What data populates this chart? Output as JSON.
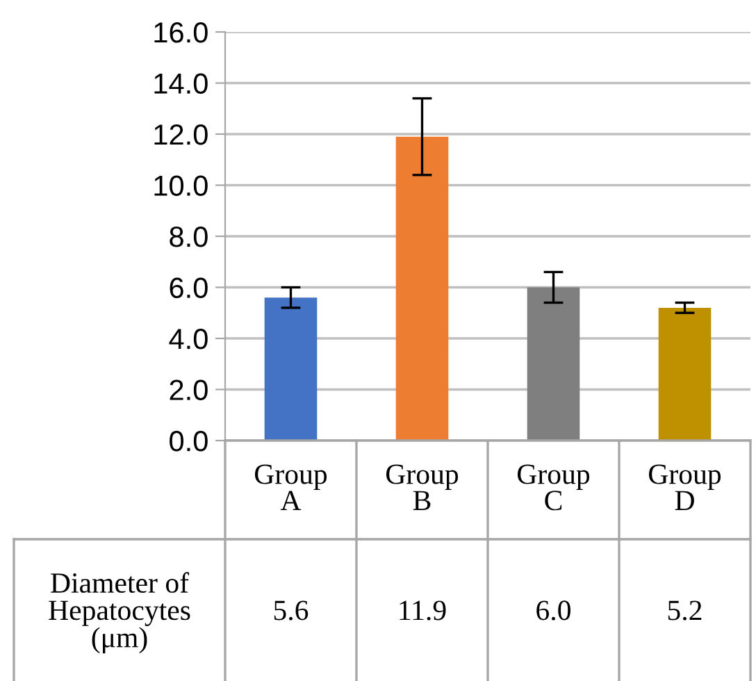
{
  "chart_data": {
    "type": "bar",
    "categories": [
      "Group\nA",
      "Group\nB",
      "Group\nC",
      "Group\nD"
    ],
    "series": [
      {
        "name": "Diameter of\nHepatocytes\n(μm)",
        "values": [
          5.6,
          11.9,
          6.0,
          5.2
        ],
        "colors": [
          "#4472c4",
          "#ed7d31",
          "#7f7f7f",
          "#bf9000"
        ],
        "errors": [
          0.4,
          1.5,
          0.6,
          0.2
        ],
        "value_labels": [
          "5.6",
          "11.9",
          "6.0",
          "5.2"
        ]
      }
    ],
    "ylim": [
      0,
      16
    ],
    "yticks": [
      {
        "value": 0,
        "label": "0.0"
      },
      {
        "value": 2,
        "label": "2.0"
      },
      {
        "value": 4,
        "label": "4.0"
      },
      {
        "value": 6,
        "label": "6.0"
      },
      {
        "value": 8,
        "label": "8.0"
      },
      {
        "value": 10,
        "label": "10.0"
      },
      {
        "value": 12,
        "label": "12.0"
      },
      {
        "value": 14,
        "label": "14.0"
      },
      {
        "value": 16,
        "label": "16.0"
      }
    ],
    "grid": "y",
    "legend": false
  }
}
